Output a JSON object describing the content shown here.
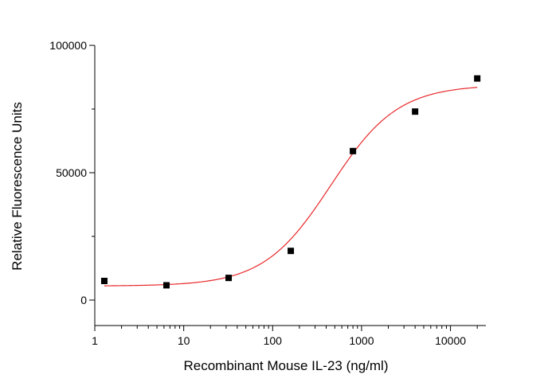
{
  "chart_data": {
    "type": "scatter",
    "title": "",
    "xlabel": "Recombinant Mouse IL-23 (ng/ml)",
    "ylabel": "Relative Fluorescence Units",
    "xscale": "log",
    "xlim": [
      1,
      25000
    ],
    "ylim": [
      -10000,
      100000
    ],
    "x_ticks": [
      1,
      10,
      100,
      1000,
      10000
    ],
    "x_tick_labels": [
      "1",
      "10",
      "100",
      "1000",
      "10000"
    ],
    "y_ticks": [
      0,
      50000,
      100000
    ],
    "y_tick_labels": [
      "0",
      "50000",
      "100000"
    ],
    "grid": false,
    "legend": "none",
    "points": {
      "x": [
        1.28,
        6.4,
        32,
        160,
        800,
        4000,
        20000
      ],
      "y": [
        7500,
        5800,
        8700,
        19300,
        58500,
        74000,
        87000
      ]
    },
    "fit_curve": {
      "model": "4PL",
      "bottom": 5500,
      "top": 84500,
      "ec50": 450,
      "hill": 1.15,
      "x_range": [
        1.28,
        20000
      ]
    },
    "colors": {
      "points": "#000000",
      "curve": "#e8282a",
      "axes": "#000000"
    }
  }
}
